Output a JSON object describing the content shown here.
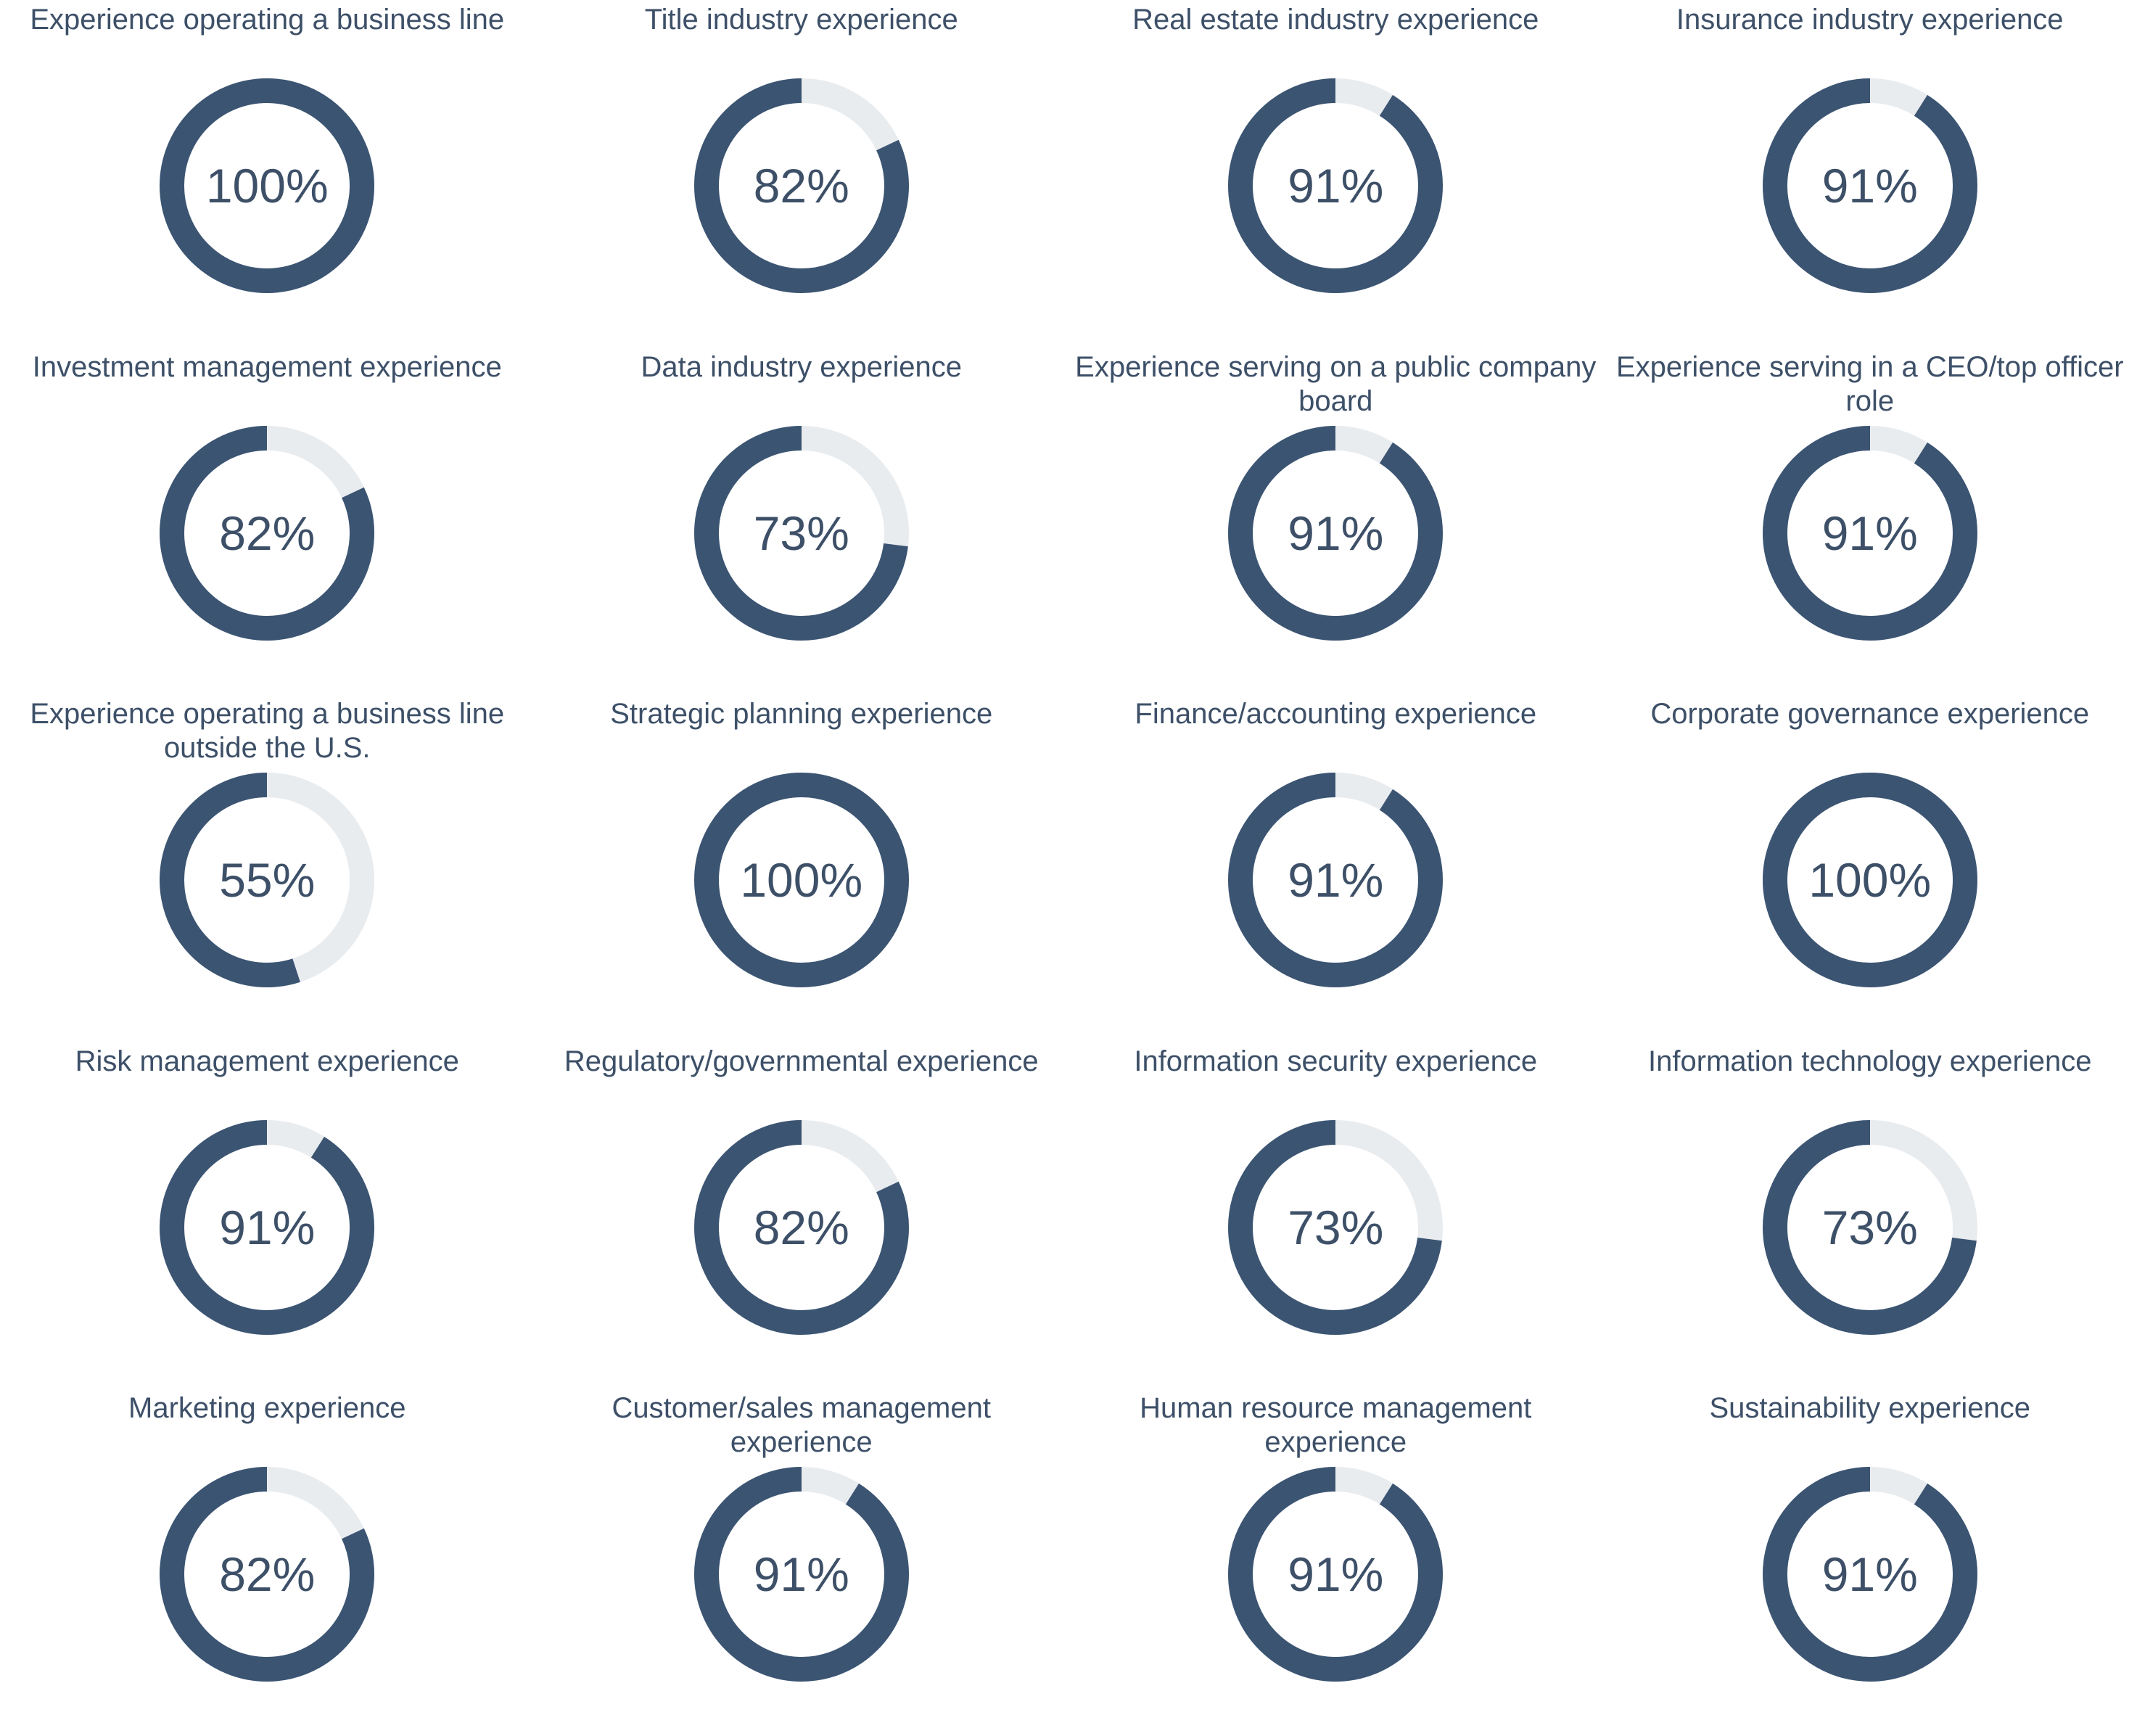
{
  "colors": {
    "filled": "#3b5472",
    "track": "#e9ecef",
    "text": "#3d5068"
  },
  "chart_data": [
    {
      "type": "pie",
      "title": "Experience operating a business line",
      "value": 100,
      "label": "100%"
    },
    {
      "type": "pie",
      "title": "Title industry experience",
      "value": 82,
      "label": "82%"
    },
    {
      "type": "pie",
      "title": "Real estate industry experience",
      "value": 91,
      "label": "91%"
    },
    {
      "type": "pie",
      "title": "Insurance industry experience",
      "value": 91,
      "label": "91%"
    },
    {
      "type": "pie",
      "title": "Investment management experience",
      "value": 82,
      "label": "82%"
    },
    {
      "type": "pie",
      "title": "Data industry experience",
      "value": 73,
      "label": "73%"
    },
    {
      "type": "pie",
      "title": "Experience serving on a public company board",
      "value": 91,
      "label": "91%"
    },
    {
      "type": "pie",
      "title": "Experience serving in a CEO/top officer role",
      "value": 91,
      "label": "91%"
    },
    {
      "type": "pie",
      "title": "Experience operating a business line outside the U.S.",
      "value": 55,
      "label": "55%"
    },
    {
      "type": "pie",
      "title": "Strategic planning experience",
      "value": 100,
      "label": "100%"
    },
    {
      "type": "pie",
      "title": "Finance/accounting experience",
      "value": 91,
      "label": "91%"
    },
    {
      "type": "pie",
      "title": "Corporate governance experience",
      "value": 100,
      "label": "100%"
    },
    {
      "type": "pie",
      "title": "Risk management experience",
      "value": 91,
      "label": "91%"
    },
    {
      "type": "pie",
      "title": "Regulatory/governmental experience",
      "value": 82,
      "label": "82%"
    },
    {
      "type": "pie",
      "title": "Information security experience",
      "value": 73,
      "label": "73%"
    },
    {
      "type": "pie",
      "title": "Information technology experience",
      "value": 73,
      "label": "73%"
    },
    {
      "type": "pie",
      "title": "Marketing experience",
      "value": 82,
      "label": "82%"
    },
    {
      "type": "pie",
      "title": "Customer/sales management experience",
      "value": 91,
      "label": "91%"
    },
    {
      "type": "pie",
      "title": "Human resource management experience",
      "value": 91,
      "label": "91%"
    },
    {
      "type": "pie",
      "title": "Sustainability experience",
      "value": 91,
      "label": "91%"
    }
  ]
}
